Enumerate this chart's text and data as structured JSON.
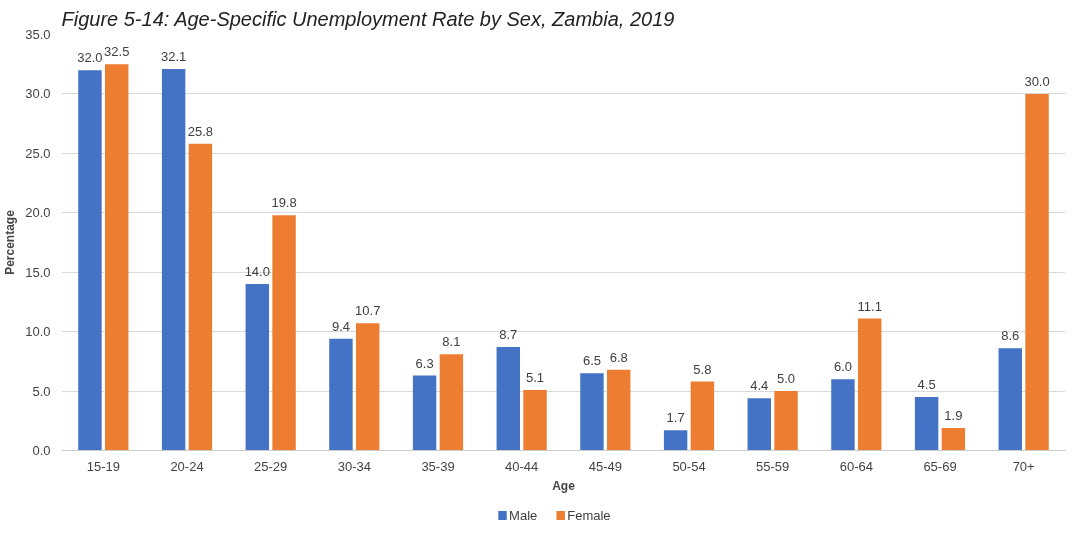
{
  "chart_data": {
    "type": "bar",
    "title": "Figure 5-14: Age-Specific Unemployment Rate by Sex, Zambia, 2019",
    "xlabel": "Age",
    "ylabel": "Percentage",
    "categories": [
      "15-19",
      "20-24",
      "25-29",
      "30-34",
      "35-39",
      "40-44",
      "45-49",
      "50-54",
      "55-59",
      "60-64",
      "65-69",
      "70+"
    ],
    "series": [
      {
        "name": "Male",
        "color": "#4472c4",
        "values": [
          32.0,
          32.1,
          14.0,
          9.4,
          6.3,
          8.7,
          6.5,
          1.7,
          4.4,
          6.0,
          4.5,
          8.6
        ],
        "value_labels": [
          "32.0",
          "32.1",
          "14.0",
          "9.4",
          "6.3",
          "8.7",
          "6.5",
          "1.7",
          "4.4",
          "6.0",
          "4.5",
          "8.6"
        ]
      },
      {
        "name": "Female",
        "color": "#ed7d31",
        "values": [
          32.5,
          25.8,
          19.8,
          10.7,
          8.1,
          5.1,
          6.8,
          5.8,
          5.0,
          11.1,
          1.9,
          30.0
        ],
        "value_labels": [
          "32.5",
          "25.8",
          "19.8",
          "10.7",
          "8.1",
          "5.1",
          "6.8",
          "5.8",
          "5.0",
          "11.1",
          "1.9",
          "30.0"
        ]
      }
    ],
    "ylim": [
      0,
      35
    ],
    "yticks": [
      {
        "value": 0,
        "label": "0.0"
      },
      {
        "value": 5,
        "label": "5.0"
      },
      {
        "value": 10,
        "label": "10.0"
      },
      {
        "value": 15,
        "label": "15.0"
      },
      {
        "value": 20,
        "label": "20.0"
      },
      {
        "value": 25,
        "label": "25.0"
      },
      {
        "value": 30,
        "label": "30.0"
      },
      {
        "value": 35,
        "label": "35.0"
      }
    ],
    "grid": "y",
    "legend": "bottom"
  }
}
